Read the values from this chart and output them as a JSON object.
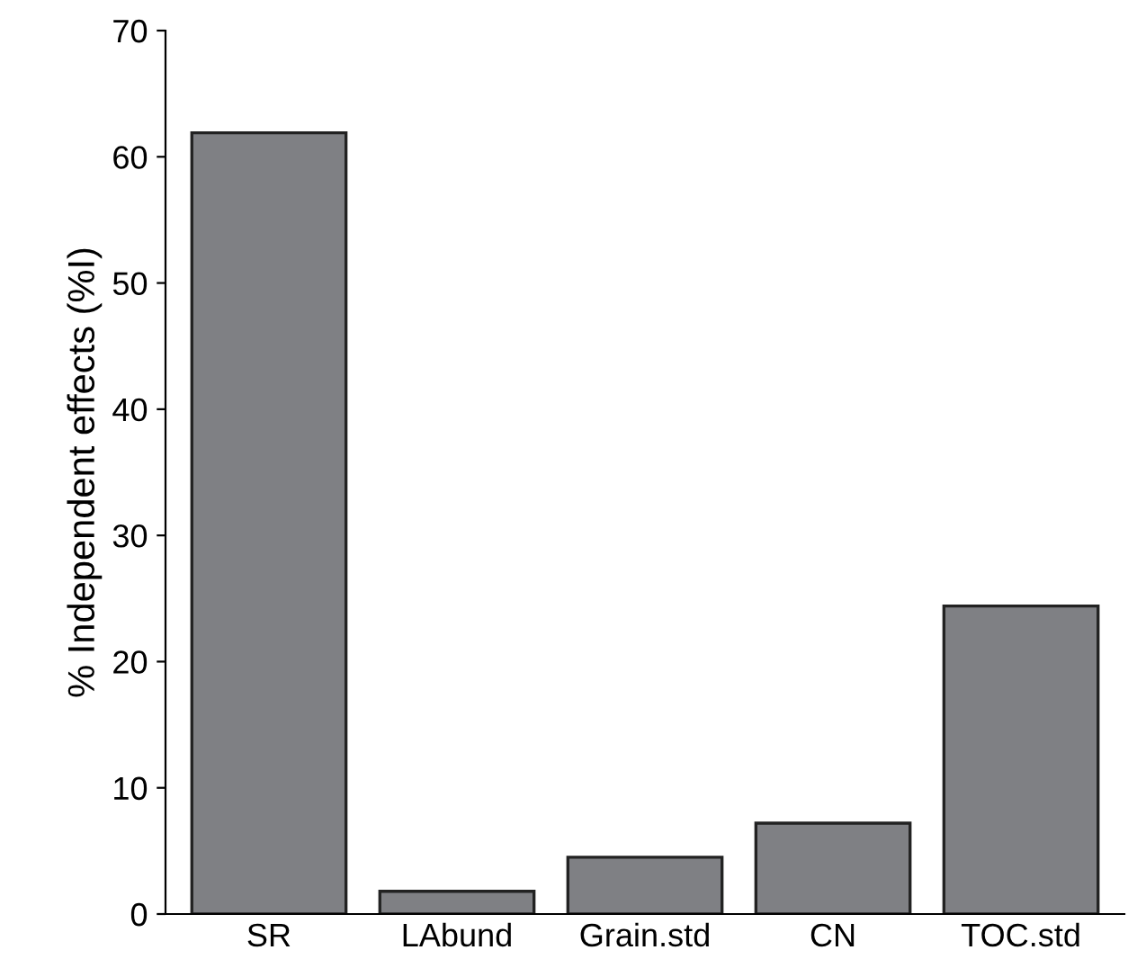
{
  "chart_data": {
    "type": "bar",
    "ylabel": "% Independent effects (%I)",
    "categories": [
      "SR",
      "LAbund",
      "Grain.std",
      "CN",
      "TOC.std"
    ],
    "values": [
      61.9,
      1.8,
      4.5,
      7.2,
      24.4
    ],
    "color": "#7f8084",
    "ylim": [
      0,
      70
    ],
    "yticks": [
      0,
      10,
      20,
      30,
      40,
      50,
      60,
      70
    ],
    "grid": false
  }
}
